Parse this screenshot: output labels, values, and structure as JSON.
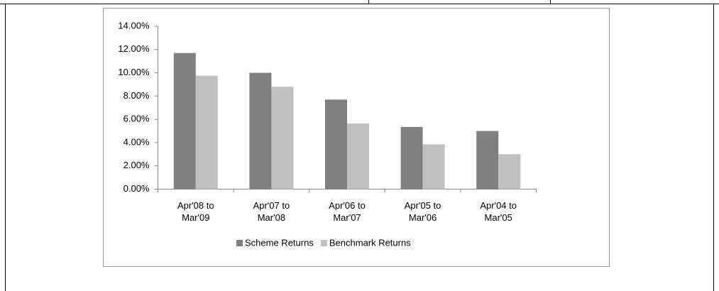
{
  "chart_data": {
    "type": "bar",
    "categories": [
      "Apr'08 to Mar'09",
      "Apr'07 to Mar'08",
      "Apr'06 to Mar'07",
      "Apr'05 to Mar'06",
      "Apr'04 to Mar'05"
    ],
    "series": [
      {
        "name": "Scheme Returns",
        "color": "#808080",
        "values": [
          11.7,
          10.0,
          7.7,
          5.35,
          5.0
        ]
      },
      {
        "name": "Benchmark Returns",
        "color": "#c0c0c0",
        "values": [
          9.75,
          8.8,
          5.65,
          3.85,
          3.0
        ]
      }
    ],
    "ylim": [
      0,
      14
    ],
    "yticks": [
      {
        "value": 0,
        "label": "0.00%"
      },
      {
        "value": 2,
        "label": "2.00%"
      },
      {
        "value": 4,
        "label": "4.00%"
      },
      {
        "value": 6,
        "label": "6.00%"
      },
      {
        "value": 8,
        "label": "8.00%"
      },
      {
        "value": 10,
        "label": "10.00%"
      },
      {
        "value": 12,
        "label": "12.00%"
      },
      {
        "value": 14,
        "label": "14.00%"
      }
    ],
    "grid": false,
    "legend": "bottom"
  }
}
